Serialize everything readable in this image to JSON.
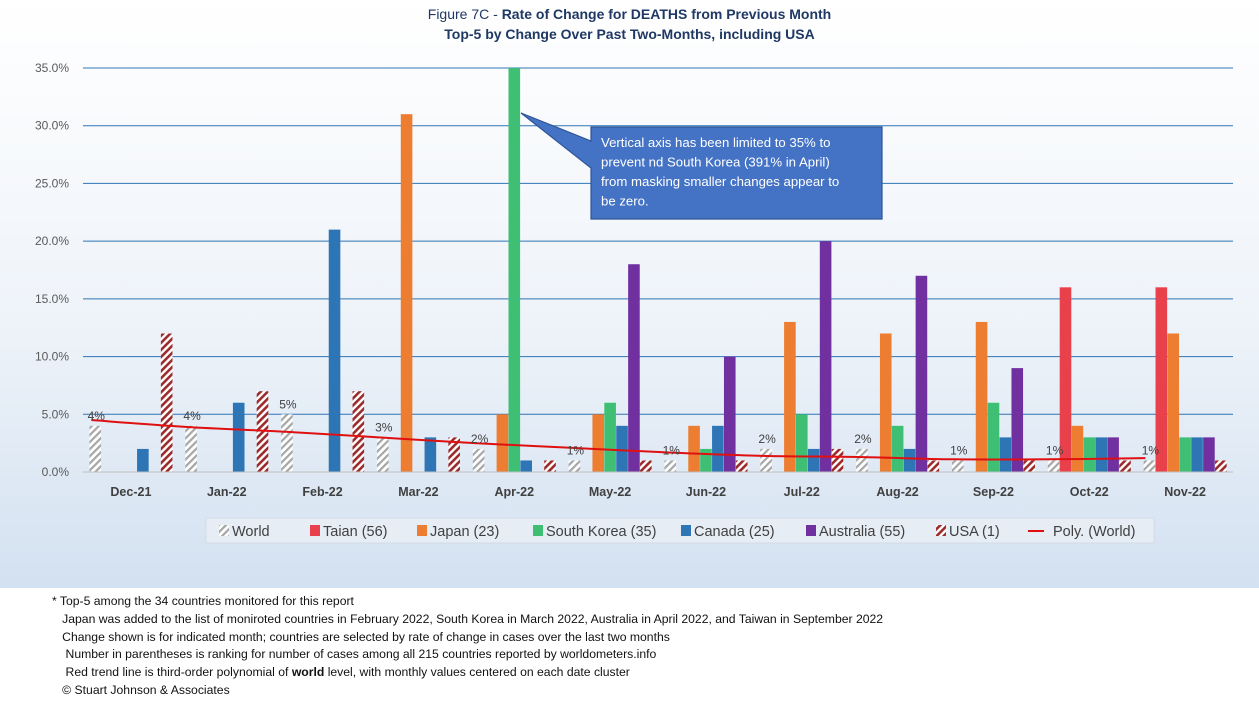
{
  "title": {
    "line1_prefix": "Figure 7C - ",
    "line1_bold": "Rate of Change for DEATHS from Previous Month",
    "line2": "Top-5 by Change Over Past Two-Months, including USA"
  },
  "colors": {
    "World": "#a6a6a6",
    "Taian (56)": "#e8414b",
    "Japan (23)": "#ed7d31",
    "South Korea (35)": "#3fbf74",
    "Canada (25)": "#2e75b6",
    "Australia (55)": "#7030a0",
    "USA (1)": "#9c2b2b",
    "trend": "#e01010",
    "gridline": "#2e75b6",
    "callout_fill": "#4472c4"
  },
  "chart_data": {
    "type": "bar",
    "ylim": [
      0,
      35
    ],
    "yticks": [
      "0.0%",
      "5.0%",
      "10.0%",
      "15.0%",
      "20.0%",
      "25.0%",
      "30.0%",
      "35.0%"
    ],
    "y_unit": "%",
    "categories": [
      "Dec-21",
      "Jan-22",
      "Feb-22",
      "Mar-22",
      "Apr-22",
      "May-22",
      "Jun-22",
      "Jul-22",
      "Aug-22",
      "Sep-22",
      "Oct-22",
      "Nov-22"
    ],
    "series": [
      {
        "name": "World",
        "pattern": "hatch",
        "values": [
          4,
          4,
          5,
          3,
          2,
          1,
          1,
          2,
          2,
          1,
          1,
          1
        ]
      },
      {
        "name": "Taian (56)",
        "values": [
          null,
          null,
          null,
          null,
          null,
          null,
          null,
          null,
          null,
          null,
          16,
          16
        ]
      },
      {
        "name": "Japan (23)",
        "values": [
          null,
          null,
          null,
          31,
          5,
          5,
          4,
          13,
          12,
          13,
          4,
          12
        ]
      },
      {
        "name": "South Korea (35)",
        "values": [
          null,
          null,
          null,
          null,
          35,
          6,
          2,
          5,
          4,
          6,
          3,
          3
        ]
      },
      {
        "name": "Canada (25)",
        "values": [
          2,
          6,
          21,
          3,
          1,
          4,
          4,
          2,
          2,
          3,
          3,
          3
        ]
      },
      {
        "name": "Australia (55)",
        "values": [
          null,
          null,
          null,
          null,
          null,
          18,
          10,
          20,
          17,
          9,
          3,
          3
        ]
      },
      {
        "name": "USA (1)",
        "pattern": "hatch",
        "values": [
          12,
          7,
          7,
          3,
          1,
          1,
          1,
          2,
          1,
          1,
          1,
          1
        ]
      }
    ],
    "data_labels": {
      "series": "World",
      "values": [
        "4%",
        "4%",
        "5%",
        "3%",
        "2%",
        "1%",
        "1%",
        "2%",
        "2%",
        "1%",
        "1%",
        "1%"
      ]
    },
    "trendline": {
      "name": "Poly. (World)",
      "type": "polynomial order 3",
      "values": [
        4.5,
        3.9,
        3.5,
        3.0,
        2.5,
        2.1,
        1.7,
        1.4,
        1.3,
        1.1,
        1.1,
        1.2
      ]
    },
    "legend": {
      "placement": "bottom",
      "entries": [
        "World",
        "Taian (56)",
        "Japan (23)",
        "South Korea (35)",
        "Canada (25)",
        "Australia (55)",
        "USA (1)",
        "Poly. (World)"
      ]
    },
    "grid": true,
    "annotation": {
      "lines": [
        "Vertical axis has been limited to 35% to",
        "prevent nd South Korea (391% in April)",
        "from masking smaller changes appear to",
        "be zero."
      ]
    }
  },
  "footnotes": [
    "* Top-5 among the 34 countries monitored for this report",
    "   Japan was added to the list of moniroted countries in February 2022, South Korea in March 2022, Australia in April 2022, and Taiwan in September 2022",
    "   Change shown is for indicated month; countries are selected by rate of change in cases over the last two months",
    "    Number in parentheses is ranking for number of cases among all 215 countries reported by worldometers.info",
    "    Red trend line is third-order polynomial of ",
    "   © Stuart Johnson & Associates"
  ],
  "footnote_bold_word": "world",
  "footnote_tail": " level, with monthly values centered on each date cluster"
}
